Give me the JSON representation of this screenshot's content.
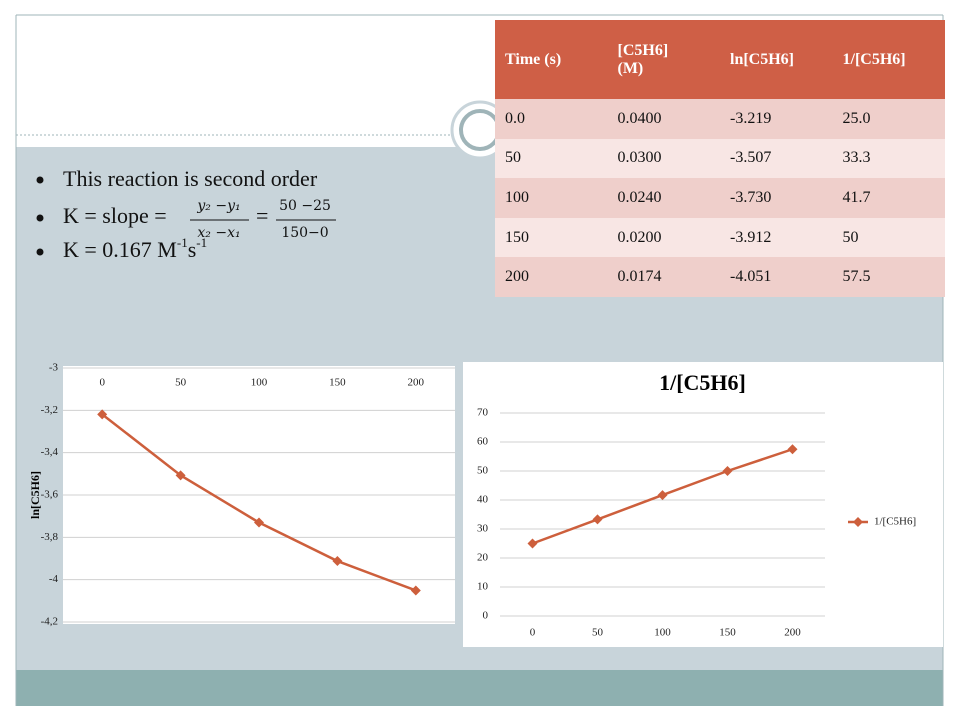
{
  "bullet_1": "This reaction is second order",
  "bullet_2": {
    "lead": "K = slope =",
    "frac1": [
      "y₂ −y₁",
      "x₂ −x₁"
    ],
    "eq": "=",
    "frac2": [
      "50 −25",
      "150−0"
    ]
  },
  "bullet_3": [
    "K = 0.167 M",
    "-1",
    "s",
    "-1"
  ],
  "table": {
    "header": [
      "Time (s)",
      "[C5H6] (M)",
      "ln[C5H6]",
      "1/[C5H6]"
    ],
    "rows": [
      [
        "0.0",
        "0.0400",
        "-3.219",
        "25.0"
      ],
      [
        "50",
        "0.0300",
        "-3.507",
        "33.3"
      ],
      [
        "100",
        "0.0240",
        "-3.730",
        "41.7"
      ],
      [
        "150",
        "0.0200",
        "-3.912",
        "50"
      ],
      [
        "200",
        "0.0174",
        "-4.051",
        "57.5"
      ]
    ]
  },
  "chart_data": [
    {
      "type": "line",
      "y_label": "ln[C5H6]",
      "categories": [
        "0",
        "50",
        "100",
        "150",
        "200"
      ],
      "values": [
        -3.219,
        -3.507,
        -3.73,
        -3.912,
        -4.051
      ],
      "color": "#cd5f3c",
      "ylim": [
        -4.2,
        -3
      ],
      "yticks": [
        {
          "value": -4.2,
          "label": "-4,2"
        },
        {
          "value": -4,
          "label": "-4"
        },
        {
          "value": -3.8,
          "label": "-3,8"
        },
        {
          "value": -3.6,
          "label": "-3,6"
        },
        {
          "value": -3.4,
          "label": "-3,4"
        },
        {
          "value": -3.2,
          "label": "-3,2"
        },
        {
          "value": -3,
          "label": "-3"
        }
      ],
      "xaxis_position": "top",
      "grid": true
    },
    {
      "type": "line",
      "title": "1/[C5H6]",
      "categories": [
        "0",
        "50",
        "100",
        "150",
        "200"
      ],
      "series": [
        {
          "name": "1/[C5H6]",
          "color": "#cd5f3c",
          "values": [
            25,
            33.3,
            41.7,
            50,
            57.5
          ]
        }
      ],
      "ylim": [
        0,
        70
      ],
      "yticks": [
        0,
        10,
        20,
        30,
        40,
        50,
        60,
        70
      ],
      "xaxis_position": "bottom",
      "legend": "right",
      "grid": true
    }
  ]
}
